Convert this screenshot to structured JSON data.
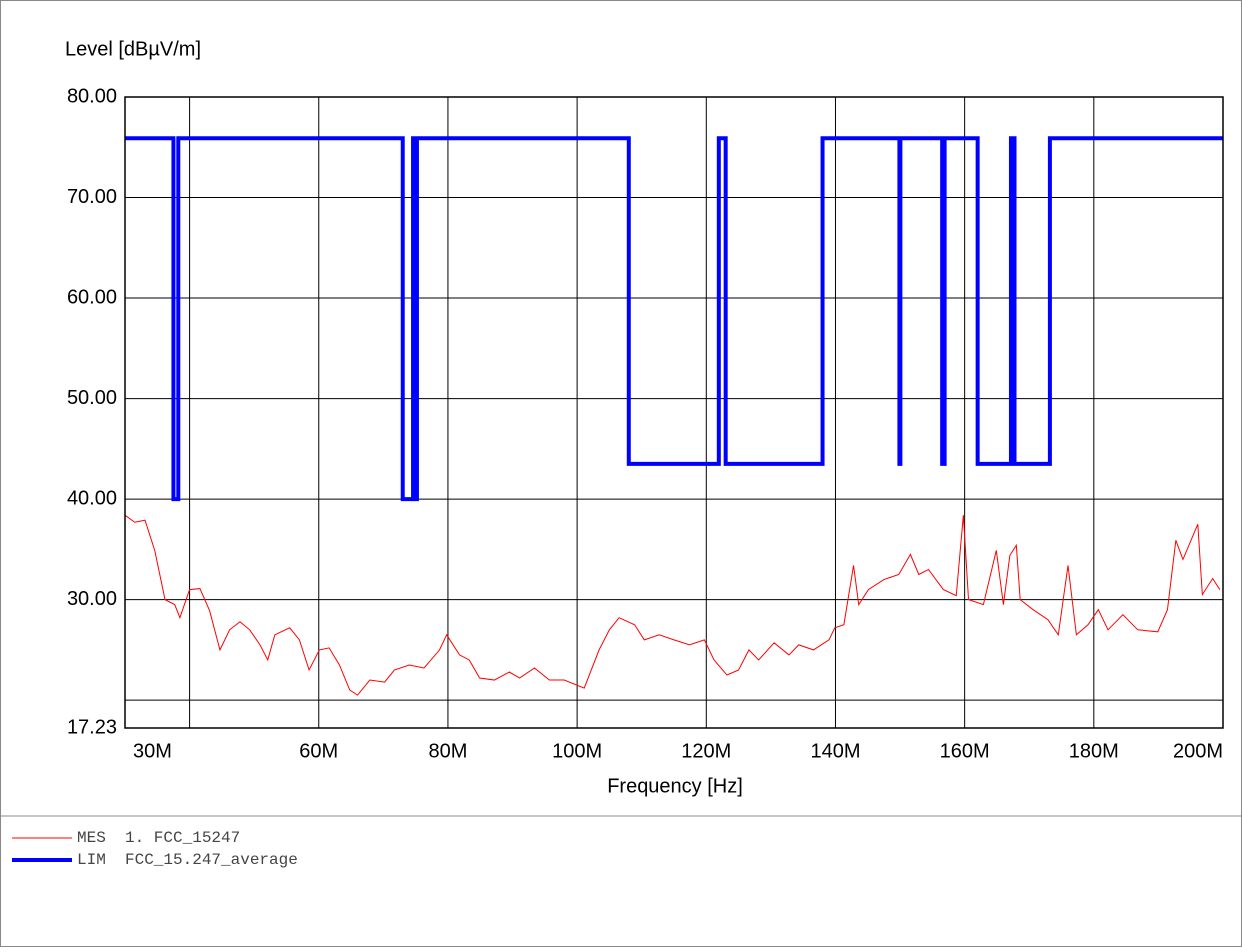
{
  "chart_data": {
    "type": "line",
    "y_label": "Level [dBµV/m]",
    "x_label": "Frequency [Hz]",
    "xlim": [
      30000000.0,
      200000000.0
    ],
    "ylim": [
      17.23,
      80
    ],
    "xticks": [
      {
        "value": 30000000.0,
        "label": "30M"
      },
      {
        "value": 40000000.0
      },
      {
        "value": 60000000.0,
        "label": "60M"
      },
      {
        "value": 80000000.0,
        "label": "80M"
      },
      {
        "value": 100000000.0,
        "label": "100M"
      },
      {
        "value": 120000000.0,
        "label": "120M"
      },
      {
        "value": 140000000.0,
        "label": "140M"
      },
      {
        "value": 160000000.0,
        "label": "160M"
      },
      {
        "value": 180000000.0,
        "label": "180M"
      },
      {
        "value": 200000000.0,
        "label": "200M"
      }
    ],
    "yticks": [
      {
        "value": 80,
        "label": "80.00"
      },
      {
        "value": 70,
        "label": "70.00"
      },
      {
        "value": 60,
        "label": "60.00"
      },
      {
        "value": 50,
        "label": "50.00"
      },
      {
        "value": 40,
        "label": "40.00"
      },
      {
        "value": 30,
        "label": "30.00"
      },
      {
        "value": 20
      },
      {
        "value": 17.23,
        "label": "17.23"
      }
    ],
    "grid": true,
    "series": [
      {
        "name": "MES",
        "description": "1. FCC_15247",
        "color": "#ff0000",
        "width": 1,
        "x": [
          30000000.0,
          31500000.0,
          33100000.0,
          34600000.0,
          36200000.0,
          37700000.0,
          38500000.0,
          40000000.0,
          41600000.0,
          43100000.0,
          44700000.0,
          46200000.0,
          47800000.0,
          49300000.0,
          50900000.0,
          52100000.0,
          53200000.0,
          55500000.0,
          57000000.0,
          58500000.0,
          60100000.0,
          61600000.0,
          63200000.0,
          64800000.0,
          66000000.0,
          67900000.0,
          70200000.0,
          71700000.0,
          74000000.0,
          76300000.0,
          78700000.0,
          79800000.0,
          81800000.0,
          83300000.0,
          84900000.0,
          87200000.0,
          89500000.0,
          91100000.0,
          93400000.0,
          95700000.0,
          98000000.0,
          101100000.0,
          103400000.0,
          105000000.0,
          106500000.0,
          108900000.0,
          110400000.0,
          112700000.0,
          115000000.0,
          117400000.0,
          119700000.0,
          121200000.0,
          123200000.0,
          125000000.0,
          126600000.0,
          128100000.0,
          130500000.0,
          132800000.0,
          134300000.0,
          136600000.0,
          139000000.0,
          139900000.0,
          141300000.0,
          142800000.0,
          143600000.0,
          145100000.0,
          147500000.0,
          149800000.0,
          151600000.0,
          152900000.0,
          154400000.0,
          156700000.0,
          158700000.0,
          159800000.0,
          160600000.0,
          162900000.0,
          164900000.0,
          166000000.0,
          167000000.0,
          168000000.0,
          168600000.0,
          170600000.0,
          172900000.0,
          174500000.0,
          176000000.0,
          177300000.0,
          179100000.0,
          180700000.0,
          182200000.0,
          184500000.0,
          186800000.0,
          189900000.0,
          191400000.0,
          192700000.0,
          193800000.0,
          196100000.0,
          196800000.0,
          198400000.0,
          199500000.0
        ],
        "values": [
          38.4,
          37.7,
          37.9,
          34.9,
          30.0,
          29.5,
          28.2,
          31.0,
          31.1,
          28.9,
          25.0,
          27.0,
          27.8,
          27.0,
          25.5,
          24.0,
          26.5,
          27.2,
          26.0,
          23.0,
          25.0,
          25.2,
          23.5,
          21.0,
          20.5,
          22.0,
          21.8,
          23.0,
          23.5,
          23.2,
          25.0,
          26.5,
          24.5,
          24.0,
          22.2,
          22.0,
          22.8,
          22.2,
          23.2,
          22.0,
          22.0,
          21.2,
          25.0,
          27.0,
          28.2,
          27.5,
          26.0,
          26.5,
          26.0,
          25.5,
          26.0,
          24.0,
          22.5,
          23.0,
          25.0,
          24.0,
          25.7,
          24.5,
          25.5,
          25.0,
          26.0,
          27.2,
          27.5,
          33.4,
          29.5,
          31.0,
          32.0,
          32.5,
          34.5,
          32.5,
          33.0,
          31.0,
          30.4,
          38.4,
          30.0,
          29.5,
          34.9,
          29.5,
          34.4,
          35.4,
          30.0,
          29.0,
          28.0,
          26.5,
          33.4,
          26.5,
          27.5,
          29.0,
          27.0,
          28.5,
          27.0,
          26.8,
          29.0,
          35.9,
          34.0,
          37.5,
          30.5,
          32.1,
          31.0
        ]
      },
      {
        "name": "LIM",
        "description": "FCC_15.247_average",
        "color": "#0000ff",
        "width": 4,
        "x": [
          30000000.0,
          37500000.0,
          37500000.0,
          38250000.0,
          38250000.0,
          73000000.0,
          73000000.0,
          74600000.0,
          74600000.0,
          74800000.0,
          74800000.0,
          75200000.0,
          75200000.0,
          108000000.0,
          108000000.0,
          121940000.0,
          121940000.0,
          123000000.0,
          123000000.0,
          138000000.0,
          138000000.0,
          149900000.0,
          149900000.0,
          150050000.0,
          150050000.0,
          156520000.0,
          156520000.0,
          156530000.0,
          156530000.0,
          156700000.0,
          156700000.0,
          156900000.0,
          156900000.0,
          162012500.0,
          162012500.0,
          167170000.0,
          167170000.0,
          167720000.0,
          167720000.0,
          173200000.0,
          173200000.0,
          200000000.0
        ],
        "values": [
          75.9,
          75.9,
          40.0,
          40.0,
          75.9,
          75.9,
          40.0,
          40.0,
          75.9,
          75.9,
          40.0,
          40.0,
          75.9,
          75.9,
          43.5,
          43.5,
          75.9,
          75.9,
          43.5,
          43.5,
          75.9,
          75.9,
          43.5,
          43.5,
          75.9,
          75.9,
          43.5,
          43.5,
          75.9,
          75.9,
          43.5,
          43.5,
          75.9,
          75.9,
          43.5,
          43.5,
          75.9,
          75.9,
          43.5,
          43.5,
          75.9,
          75.9
        ]
      }
    ]
  }
}
